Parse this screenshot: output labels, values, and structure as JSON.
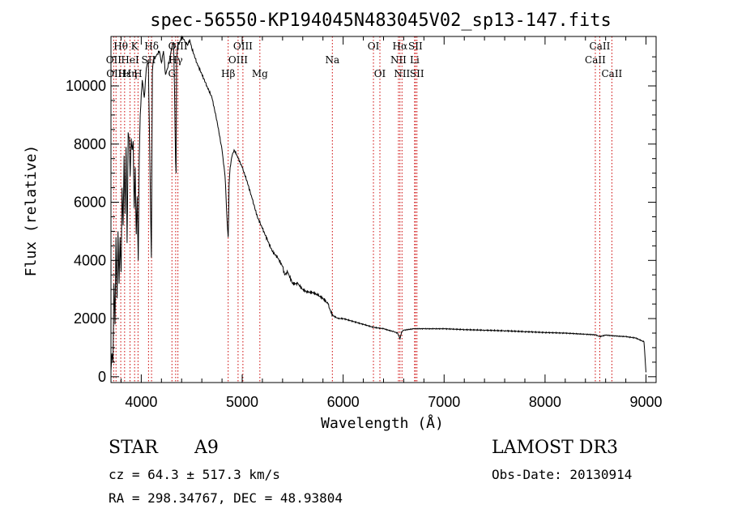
{
  "chart_data": {
    "type": "line",
    "title": "spec-56550-KP194045N483045V02_sp13-147.fits",
    "xlabel": "Wavelength (Å)",
    "ylabel": "Flux (relative)",
    "xlim": [
      3700,
      9100
    ],
    "ylim": [
      -200,
      11700
    ],
    "xticks": [
      4000,
      5000,
      6000,
      7000,
      8000,
      9000
    ],
    "yticks": [
      0,
      2000,
      4000,
      6000,
      8000,
      10000
    ],
    "grid": false,
    "series": [
      {
        "name": "spectrum",
        "x": [
          3700,
          3710,
          3720,
          3730,
          3740,
          3750,
          3760,
          3770,
          3780,
          3790,
          3800,
          3810,
          3820,
          3830,
          3840,
          3850,
          3860,
          3870,
          3880,
          3890,
          3900,
          3910,
          3920,
          3930,
          3940,
          3950,
          3960,
          3970,
          3980,
          3990,
          4000,
          4010,
          4030,
          4050,
          4070,
          4090,
          4100,
          4110,
          4120,
          4140,
          4160,
          4180,
          4200,
          4220,
          4240,
          4260,
          4280,
          4300,
          4320,
          4330,
          4340,
          4345,
          4350,
          4360,
          4380,
          4400,
          4420,
          4440,
          4460,
          4480,
          4500,
          4550,
          4600,
          4650,
          4700,
          4750,
          4800,
          4830,
          4850,
          4855,
          4861,
          4865,
          4870,
          4880,
          4900,
          4920,
          4950,
          5000,
          5050,
          5100,
          5150,
          5200,
          5250,
          5300,
          5350,
          5400,
          5420,
          5450,
          5500,
          5550,
          5600,
          5650,
          5700,
          5750,
          5800,
          5850,
          5880,
          5900,
          5950,
          6000,
          6100,
          6200,
          6300,
          6400,
          6500,
          6540,
          6563,
          6580,
          6600,
          6700,
          6800,
          6900,
          7000,
          7200,
          7400,
          7600,
          7800,
          8000,
          8200,
          8400,
          8500,
          8542,
          8600,
          8700,
          8800,
          8900,
          8980,
          9000
        ],
        "values": [
          200,
          800,
          500,
          3200,
          1800,
          4800,
          2700,
          5000,
          3200,
          4800,
          3600,
          6500,
          5200,
          7600,
          5600,
          7900,
          4600,
          8400,
          8200,
          6900,
          8200,
          7800,
          8100,
          5800,
          7200,
          4900,
          6200,
          4000,
          7500,
          9000,
          9700,
          10200,
          9600,
          10600,
          10900,
          6400,
          4100,
          10500,
          10900,
          11000,
          11100,
          11200,
          10800,
          11200,
          10400,
          10600,
          10900,
          11300,
          11500,
          9800,
          7400,
          7000,
          10800,
          11400,
          11500,
          11700,
          11600,
          11500,
          11400,
          11600,
          11300,
          10800,
          10400,
          10000,
          9600,
          8800,
          7800,
          6900,
          5400,
          5100,
          4800,
          5400,
          6600,
          7200,
          7600,
          7800,
          7600,
          7200,
          6700,
          6100,
          5500,
          5100,
          4700,
          4300,
          4100,
          3800,
          3500,
          3600,
          3200,
          3200,
          3000,
          2900,
          2900,
          2800,
          2700,
          2500,
          2200,
          2100,
          2000,
          2000,
          1900,
          1800,
          1700,
          1650,
          1550,
          1500,
          1300,
          1550,
          1600,
          1650,
          1650,
          1650,
          1650,
          1620,
          1600,
          1580,
          1550,
          1520,
          1500,
          1460,
          1440,
          1380,
          1430,
          1400,
          1380,
          1330,
          1200,
          150
        ]
      }
    ],
    "annotations": [
      {
        "label": "Hθ",
        "wavelength": 3797,
        "row": 1
      },
      {
        "label": "OII",
        "wavelength": 3727,
        "row": 2
      },
      {
        "label": "OIII",
        "wavelength": 3750,
        "row": 3
      },
      {
        "label": "Hε",
        "wavelength": 3835,
        "row": 3
      },
      {
        "label": "HeI",
        "wavelength": 3889,
        "row": 2
      },
      {
        "label": "Hη",
        "wavelength": 3889,
        "row": 3
      },
      {
        "label": "K",
        "wavelength": 3934,
        "row": 1
      },
      {
        "label": "SII",
        "wavelength": 4072,
        "row": 2
      },
      {
        "label": "H",
        "wavelength": 3968,
        "row": 3
      },
      {
        "label": "Hδ",
        "wavelength": 4102,
        "row": 1
      },
      {
        "label": "OIII",
        "wavelength": 4363,
        "row": 1
      },
      {
        "label": "Hγ",
        "wavelength": 4341,
        "row": 2
      },
      {
        "label": "G",
        "wavelength": 4304,
        "row": 3
      },
      {
        "label": "OIII",
        "wavelength": 5007,
        "row": 1
      },
      {
        "label": "OIII",
        "wavelength": 4959,
        "row": 2
      },
      {
        "label": "Hβ",
        "wavelength": 4861,
        "row": 3
      },
      {
        "label": "Mg",
        "wavelength": 5175,
        "row": 3
      },
      {
        "label": "Na",
        "wavelength": 5893,
        "row": 2
      },
      {
        "label": "OI",
        "wavelength": 6300,
        "row": 1
      },
      {
        "label": "OI",
        "wavelength": 6364,
        "row": 3
      },
      {
        "label": "Hα",
        "wavelength": 6563,
        "row": 1
      },
      {
        "label": "SII",
        "wavelength": 6716,
        "row": 1
      },
      {
        "label": "NII",
        "wavelength": 6548,
        "row": 2
      },
      {
        "label": "Li",
        "wavelength": 6708,
        "row": 2
      },
      {
        "label": "NII",
        "wavelength": 6583,
        "row": 3
      },
      {
        "label": "SII",
        "wavelength": 6731,
        "row": 3
      },
      {
        "label": "CaII",
        "wavelength": 8542,
        "row": 1
      },
      {
        "label": "CaII",
        "wavelength": 8498,
        "row": 2
      },
      {
        "label": "CaII",
        "wavelength": 8662,
        "row": 3
      }
    ],
    "line_markers": [
      3727,
      3750,
      3797,
      3835,
      3889,
      3934,
      3968,
      4072,
      4102,
      4304,
      4341,
      4363,
      4861,
      4959,
      5007,
      5175,
      5893,
      6300,
      6364,
      6548,
      6563,
      6583,
      6708,
      6716,
      6731,
      8498,
      8542,
      8662
    ]
  },
  "info": {
    "class_label": "STAR",
    "subclass": "A9",
    "survey": "LAMOST DR3",
    "redshift": "cz = 64.3 ± 517.3 km/s",
    "obs_date": "Obs-Date: 20130914",
    "coords": "RA = 298.34767, DEC =  48.93804"
  },
  "colors": {
    "line": "#000000",
    "marker": "#cc0000",
    "axis": "#000000"
  }
}
